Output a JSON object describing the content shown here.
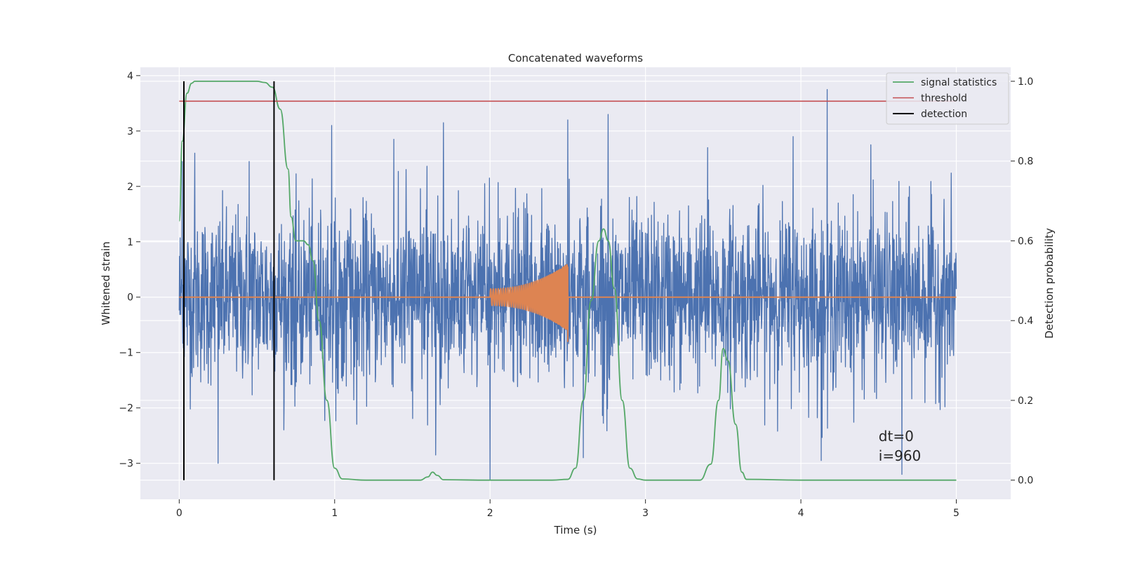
{
  "chart_data": {
    "type": "line",
    "title": "Concatenated waveforms",
    "xlabel": "Time (s)",
    "ylabel_left": "Whitened strain",
    "ylabel_right": "Detection probability",
    "xlim": [
      -0.25,
      5.35
    ],
    "ylim_left": [
      -3.65,
      4.15
    ],
    "ylim_right": [
      -0.048,
      1.035
    ],
    "xticks": [
      0,
      1,
      2,
      3,
      4,
      5
    ],
    "yticks_left": [
      -3,
      -2,
      -1,
      0,
      1,
      2,
      3,
      4
    ],
    "yticks_right": [
      0.0,
      0.2,
      0.4,
      0.6,
      0.8,
      1.0
    ],
    "grid": true,
    "legend_position": "top-right",
    "legend": [
      "signal statistics",
      "threshold",
      "detection"
    ],
    "colors": {
      "strain": "#4c72b0",
      "signal": "#dd8452",
      "statistics": "#55a868",
      "threshold": "#c44e52",
      "detection": "#000000",
      "plot_bg": "#eaeaf2",
      "grid": "#ffffff"
    },
    "series": [
      {
        "name": "",
        "axis": "left",
        "kind": "noise",
        "x_range": [
          0,
          5
        ],
        "envelope": 1.4,
        "peaks": [
          {
            "x": 0.02,
            "y": 2.45
          },
          {
            "x": 0.1,
            "y": 2.6
          },
          {
            "x": 0.25,
            "y": -3.0
          },
          {
            "x": 0.45,
            "y": 2.45
          },
          {
            "x": 0.98,
            "y": 3.1
          },
          {
            "x": 1.38,
            "y": 2.85
          },
          {
            "x": 1.65,
            "y": -2.85
          },
          {
            "x": 1.7,
            "y": 3.15
          },
          {
            "x": 2.0,
            "y": -3.3
          },
          {
            "x": 2.5,
            "y": 3.2
          },
          {
            "x": 2.6,
            "y": -2.9
          },
          {
            "x": 2.76,
            "y": 3.3
          },
          {
            "x": 3.4,
            "y": 2.7
          },
          {
            "x": 3.95,
            "y": 2.9
          },
          {
            "x": 4.17,
            "y": 3.75
          },
          {
            "x": 4.13,
            "y": -2.95
          },
          {
            "x": 4.45,
            "y": 2.75
          },
          {
            "x": 4.65,
            "y": -3.2
          }
        ]
      },
      {
        "name": "",
        "axis": "left",
        "kind": "chirp",
        "x_range": [
          0,
          5
        ],
        "chirp_start": 2.0,
        "chirp_end": 2.5,
        "start_amplitude": 0.15,
        "peak_amplitude": 0.6,
        "min_at_end": -0.8
      },
      {
        "name": "signal statistics",
        "axis": "right",
        "x": [
          0,
          0.02,
          0.05,
          0.08,
          0.1,
          0.15,
          0.5,
          0.55,
          0.6,
          0.65,
          0.7,
          0.72,
          0.75,
          0.8,
          0.83,
          0.86,
          0.9,
          0.95,
          1.0,
          1.05,
          1.2,
          1.55,
          1.6,
          1.63,
          1.66,
          1.7,
          2.0,
          2.4,
          2.5,
          2.55,
          2.6,
          2.65,
          2.7,
          2.73,
          2.76,
          2.8,
          2.85,
          2.9,
          2.95,
          3.0,
          3.35,
          3.42,
          3.47,
          3.5,
          3.53,
          3.58,
          3.62,
          3.65,
          4.0,
          5.0
        ],
        "y": [
          0.65,
          0.85,
          0.97,
          0.995,
          1.0,
          1.0,
          1.0,
          0.997,
          0.985,
          0.93,
          0.78,
          0.66,
          0.6,
          0.6,
          0.59,
          0.55,
          0.4,
          0.2,
          0.03,
          0.003,
          0.0,
          0.0,
          0.008,
          0.02,
          0.012,
          0.001,
          0.0,
          0.0,
          0.002,
          0.03,
          0.2,
          0.45,
          0.6,
          0.63,
          0.6,
          0.48,
          0.2,
          0.03,
          0.003,
          0.0,
          0.0,
          0.04,
          0.2,
          0.33,
          0.3,
          0.14,
          0.02,
          0.002,
          0.0,
          0.0
        ]
      },
      {
        "name": "threshold",
        "axis": "right",
        "x": [
          0,
          5
        ],
        "y": [
          0.95,
          0.95
        ]
      },
      {
        "name": "detection",
        "axis": "right",
        "kind": "vlines",
        "x": [
          0.03,
          0.61
        ],
        "y_range": [
          0.0,
          1.0
        ]
      }
    ],
    "annotations": {
      "line1": "dt=0",
      "line2": "i=960",
      "x": 4.5,
      "y": -2.6
    }
  }
}
